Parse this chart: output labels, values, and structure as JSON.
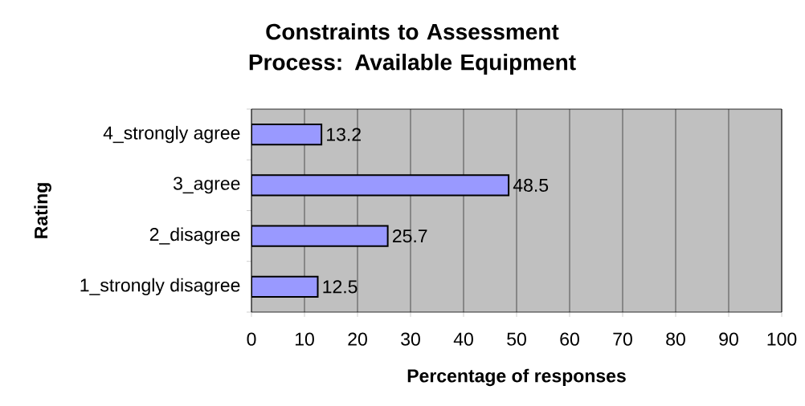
{
  "chart_data": {
    "type": "bar",
    "orientation": "horizontal",
    "title": "Constraints to Assessment Process: Available Equipment",
    "xlabel": "Percentage of responses",
    "ylabel": "Rating",
    "categories": [
      "4_strongly agree",
      "3_agree",
      "2_disagree",
      "1_strongly disagree"
    ],
    "values": [
      13.2,
      48.5,
      25.7,
      12.5
    ],
    "color": "#9999ff",
    "data_labels": true,
    "xlim": [
      0,
      100
    ],
    "xticks": [
      0,
      10,
      20,
      30,
      40,
      50,
      60,
      70,
      80,
      90,
      100
    ],
    "grid": "x"
  }
}
